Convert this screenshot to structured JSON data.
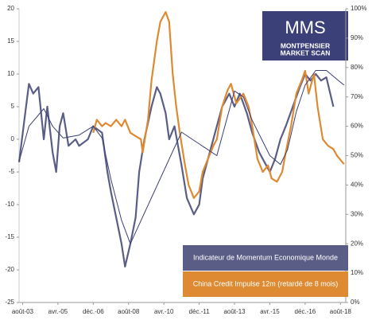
{
  "chart_data": {
    "type": "line",
    "x": [
      -2,
      1,
      3.6,
      6,
      9,
      12,
      14,
      17,
      19,
      21,
      23,
      26,
      30,
      32,
      37,
      40,
      42,
      45,
      47,
      48,
      50,
      53,
      56,
      58,
      61,
      64,
      66,
      67,
      68,
      69,
      71,
      73,
      76,
      78,
      81,
      83,
      85,
      86,
      87,
      89,
      90,
      92,
      93,
      94,
      97,
      100,
      102,
      105,
      106,
      108,
      110,
      113,
      116,
      117,
      118,
      120,
      121,
      123,
      125,
      127,
      128,
      130,
      133,
      134,
      136,
      138,
      139,
      140,
      141,
      143,
      144,
      146,
      147,
      149,
      150,
      152,
      153,
      155,
      157,
      158,
      160,
      162,
      163,
      165,
      166,
      167,
      169,
      170,
      172,
      173,
      176,
      178,
      182
    ],
    "series": [
      {
        "name": "Indicateur de Momentum Economique Monde",
        "color": "#5a5e86",
        "values": [
          -3.5,
          3,
          8.5,
          7,
          8,
          0,
          5,
          -2,
          -5,
          2,
          4,
          -1,
          0,
          -1,
          0,
          2,
          null,
          1,
          null,
          -5,
          -8,
          -12,
          -16,
          -19.5,
          -16,
          -12,
          -5,
          null,
          null,
          0,
          null,
          5,
          8,
          7,
          4,
          0,
          null,
          2,
          null,
          null,
          -4,
          null,
          -9,
          null,
          -11.5,
          -10,
          -6,
          null,
          -2,
          null,
          2,
          5,
          null,
          7,
          null,
          5,
          null,
          7,
          null,
          4,
          null,
          1,
          null,
          -2,
          null,
          -4,
          null,
          -5,
          null,
          -3,
          null,
          0,
          null,
          2,
          null,
          null,
          5,
          null,
          8,
          null,
          10,
          null,
          9,
          null,
          10,
          null,
          9,
          null,
          9.5,
          null,
          5,
          null,
          null
        ]
      },
      {
        "name": "China Credit Impulse 12m (retardé de 8 mois)",
        "color": "#dd8a32",
        "values": [
          null,
          null,
          null,
          null,
          null,
          null,
          null,
          null,
          null,
          null,
          null,
          null,
          null,
          null,
          null,
          1,
          3,
          2,
          2.5,
          null,
          2,
          3,
          2,
          3,
          1,
          0.5,
          null,
          0,
          -2,
          null,
          3,
          9,
          15,
          18,
          19.5,
          18,
          10,
          null,
          5,
          1,
          null,
          -4,
          null,
          -7,
          -9,
          -8,
          -5,
          -3,
          null,
          -1,
          0,
          5,
          7.5,
          null,
          8.5,
          null,
          5.5,
          null,
          7,
          null,
          5,
          2,
          -3,
          null,
          -5,
          null,
          -4,
          null,
          -6,
          null,
          -6.5,
          null,
          -5,
          -2,
          null,
          2,
          null,
          7,
          null,
          9,
          10.5,
          7,
          null,
          10,
          null,
          5,
          null,
          0,
          null,
          -1,
          -1.5,
          -2.5,
          -3.8
        ]
      },
      {
        "color": "#3b3f74",
        "axis": "y2",
        "values": [
          48,
          null,
          60,
          null,
          null,
          66,
          null,
          60,
          null,
          null,
          56,
          null,
          null,
          57,
          null,
          60,
          null,
          56,
          null,
          null,
          42,
          null,
          28,
          null,
          20,
          null,
          null,
          null,
          null,
          null,
          null,
          null,
          null,
          null,
          null,
          null,
          null,
          null,
          null,
          null,
          58,
          null,
          null,
          null,
          null,
          null,
          null,
          null,
          null,
          null,
          50,
          null,
          null,
          null,
          null,
          72,
          null,
          null,
          70,
          null,
          null,
          62,
          null,
          null,
          null,
          null,
          null,
          50,
          null,
          null,
          null,
          47,
          null,
          null,
          52,
          null,
          null,
          65,
          null,
          null,
          74,
          null,
          null,
          null,
          79,
          null,
          null,
          null,
          79,
          null,
          null,
          76,
          74
        ]
      }
    ],
    "xticks": [
      {
        "value": 0,
        "label": "août-03"
      },
      {
        "value": 20,
        "label": "avr.-05"
      },
      {
        "value": 40,
        "label": "déc.-06"
      },
      {
        "value": 60,
        "label": "août-08"
      },
      {
        "value": 80,
        "label": "avr.-10"
      },
      {
        "value": 100,
        "label": "déc.-11"
      },
      {
        "value": 120,
        "label": "août-13"
      },
      {
        "value": 140,
        "label": "avr.-15"
      },
      {
        "value": 160,
        "label": "déc.-16"
      },
      {
        "value": 180,
        "label": "août-18"
      }
    ],
    "xlim": [
      -2,
      183
    ],
    "ylim": [
      -25,
      20
    ],
    "yticks": [
      -25,
      -20,
      -15,
      -10,
      -5,
      0,
      5,
      10,
      15,
      20
    ],
    "y2lim": [
      0,
      100
    ],
    "y2ticks": [
      {
        "value": 0,
        "label": "0%"
      },
      {
        "value": 10,
        "label": "10%"
      },
      {
        "value": 20,
        "label": "20%"
      },
      {
        "value": 30,
        "label": "30%"
      },
      {
        "value": 40,
        "label": "40%"
      },
      {
        "value": 50,
        "label": "50%"
      },
      {
        "value": 60,
        "label": "60%"
      },
      {
        "value": 70,
        "label": "70%"
      },
      {
        "value": 80,
        "label": "80%"
      },
      {
        "value": 90,
        "label": "90%"
      },
      {
        "value": 100,
        "label": "100%"
      }
    ]
  },
  "logo": {
    "title": "MMS",
    "line1": "MONTPENSIER",
    "line2": "MARKET SCAN"
  }
}
